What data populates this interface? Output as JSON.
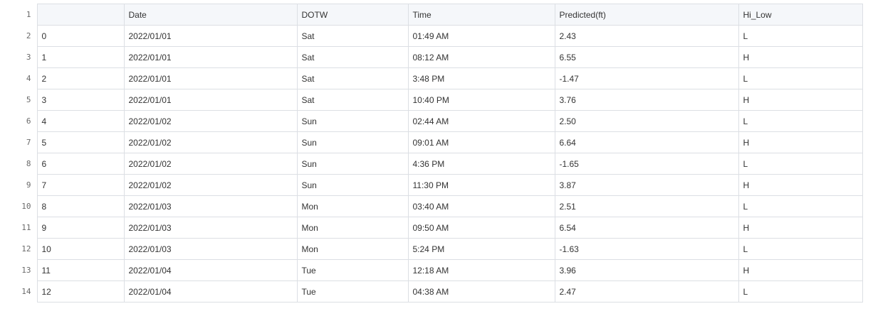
{
  "table": {
    "columns": [
      "",
      "Date",
      "DOTW",
      "Time",
      "Predicted(ft)",
      "Hi_Low"
    ],
    "rows": [
      [
        "0",
        "2022/01/01",
        "Sat",
        "01:49 AM",
        "2.43",
        "L"
      ],
      [
        "1",
        "2022/01/01",
        "Sat",
        "08:12 AM",
        "6.55",
        "H"
      ],
      [
        "2",
        "2022/01/01",
        "Sat",
        "3:48 PM",
        "-1.47",
        "L"
      ],
      [
        "3",
        "2022/01/01",
        "Sat",
        "10:40 PM",
        "3.76",
        "H"
      ],
      [
        "4",
        "2022/01/02",
        "Sun",
        "02:44 AM",
        "2.50",
        "L"
      ],
      [
        "5",
        "2022/01/02",
        "Sun",
        "09:01 AM",
        "6.64",
        "H"
      ],
      [
        "6",
        "2022/01/02",
        "Sun",
        "4:36 PM",
        "-1.65",
        "L"
      ],
      [
        "7",
        "2022/01/02",
        "Sun",
        "11:30 PM",
        "3.87",
        "H"
      ],
      [
        "8",
        "2022/01/03",
        "Mon",
        "03:40 AM",
        "2.51",
        "L"
      ],
      [
        "9",
        "2022/01/03",
        "Mon",
        "09:50 AM",
        "6.54",
        "H"
      ],
      [
        "10",
        "2022/01/03",
        "Mon",
        "5:24 PM",
        "-1.63",
        "L"
      ],
      [
        "11",
        "2022/01/04",
        "Tue",
        "12:18 AM",
        "3.96",
        "H"
      ],
      [
        "12",
        "2022/01/04",
        "Tue",
        "04:38 AM",
        "2.47",
        "L"
      ]
    ]
  },
  "line_numbers": [
    "1",
    "2",
    "3",
    "4",
    "5",
    "6",
    "7",
    "8",
    "9",
    "10",
    "11",
    "12",
    "13",
    "14"
  ]
}
